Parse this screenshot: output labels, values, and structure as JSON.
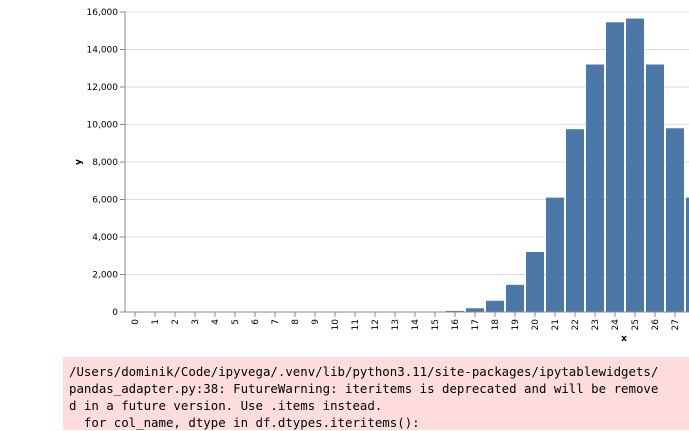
{
  "chart_data": {
    "type": "bar",
    "categories": [
      "0",
      "1",
      "2",
      "3",
      "4",
      "5",
      "6",
      "7",
      "8",
      "9",
      "10",
      "11",
      "12",
      "13",
      "14",
      "15",
      "16",
      "17",
      "18",
      "19",
      "20",
      "21",
      "22",
      "23",
      "24",
      "25",
      "26",
      "27",
      null
    ],
    "values": [
      0,
      0,
      0,
      0,
      0,
      0,
      0,
      0,
      0,
      0,
      0,
      0,
      0,
      0,
      5,
      20,
      60,
      200,
      600,
      1450,
      3200,
      6100,
      9750,
      13200,
      15450,
      15650,
      13200,
      9800,
      6100
    ],
    "color": "#4c78a8",
    "x_label": "x",
    "y_label": "y",
    "ylim": [
      0,
      16000
    ],
    "yticks": [
      0,
      {
        "value": 2000,
        "label": "2,000"
      },
      {
        "value": 4000,
        "label": "4,000"
      },
      {
        "value": 6000,
        "label": "6,000"
      },
      {
        "value": 8000,
        "label": "8,000"
      },
      {
        "value": 10000,
        "label": "10,000"
      },
      {
        "value": 12000,
        "label": "12,000"
      },
      {
        "value": 14000,
        "label": "14,000"
      },
      {
        "value": 16000,
        "label": "16,000"
      }
    ],
    "grid": true
  },
  "warning": {
    "lines": [
      "/Users/dominik/Code/ipyvega/.venv/lib/python3.11/site-packages/ipytablewidgets/",
      "pandas_adapter.py:38: FutureWarning: iteritems is deprecated and will be remove",
      "d in a future version. Use .items instead.",
      "  for col_name, dtype in df.dtypes.iteritems():"
    ]
  }
}
